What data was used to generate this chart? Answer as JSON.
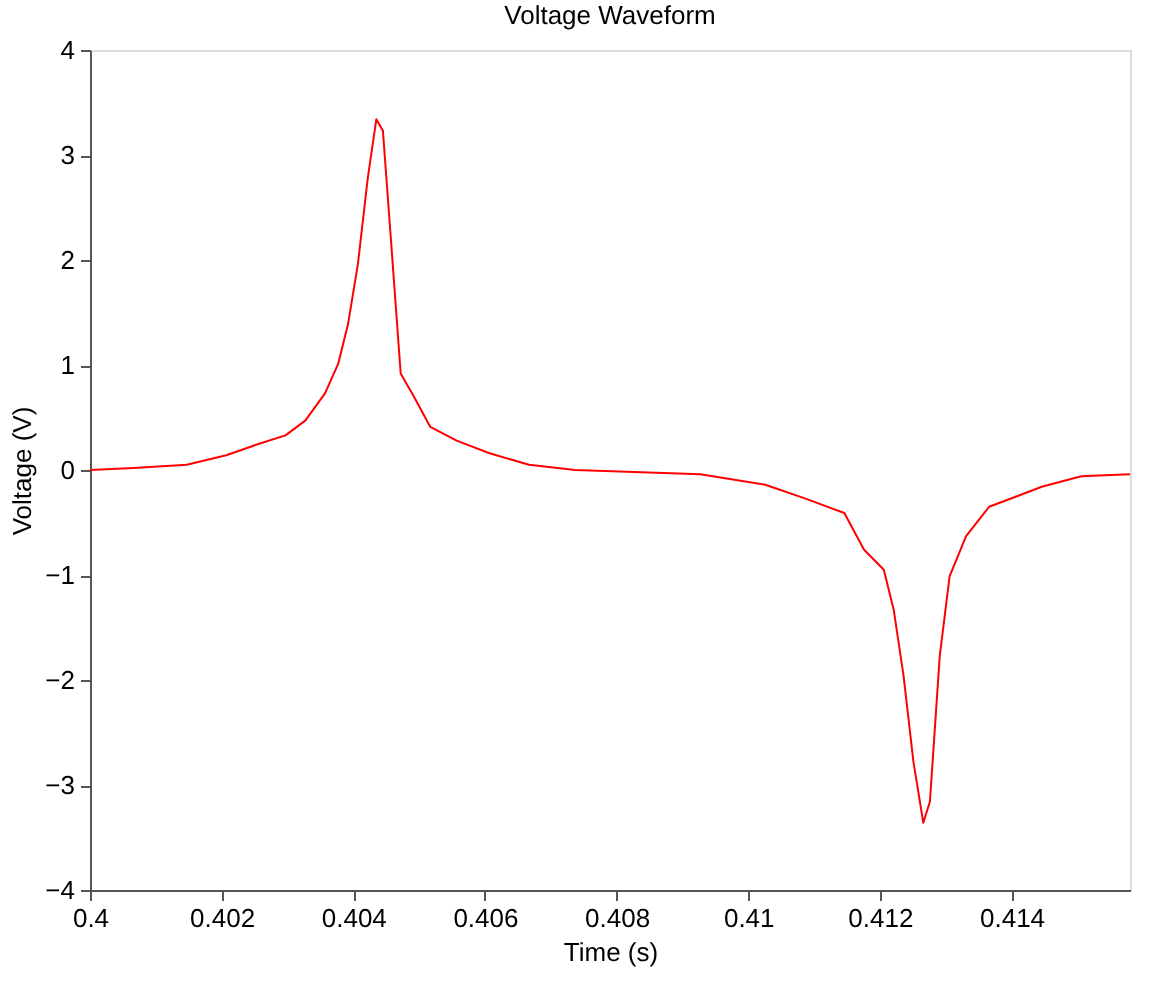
{
  "chart_data": {
    "type": "line",
    "title": "Voltage Waveform",
    "xlabel": "Time (s)",
    "ylabel": "Voltage (V)",
    "xlim": [
      0.4,
      0.4158
    ],
    "xticks": [
      0.4,
      0.402,
      0.404,
      0.406,
      0.408,
      0.41,
      0.412,
      0.414
    ],
    "ylim": [
      -4,
      4
    ],
    "yticks": [
      -4,
      -3,
      -2,
      -1,
      0,
      1,
      2,
      3,
      4
    ],
    "grid": false,
    "marker": "none",
    "line_style": "solid",
    "series": [
      {
        "color": "#ff0000",
        "x": [
          0.4,
          0.40066,
          0.40147,
          0.40207,
          0.40257,
          0.40297,
          0.40327,
          0.40357,
          0.40377,
          0.40392,
          0.40407,
          0.40422,
          0.40435,
          0.40445,
          0.40457,
          0.40472,
          0.40492,
          0.40517,
          0.40557,
          0.40607,
          0.40667,
          0.40737,
          0.40927,
          0.41026,
          0.41086,
          0.41146,
          0.41176,
          0.41206,
          0.41221,
          0.41236,
          0.41251,
          0.41266,
          0.41276,
          0.41291,
          0.41306,
          0.41331,
          0.41366,
          0.41446,
          0.41506,
          0.4158
        ],
        "values": [
          0,
          0.02,
          0.05,
          0.14,
          0.25,
          0.33,
          0.47,
          0.73,
          1.01,
          1.39,
          1.96,
          2.78,
          3.34,
          3.23,
          2.21,
          0.92,
          0.7,
          0.41,
          0.28,
          0.16,
          0.05,
          0,
          -0.04,
          -0.14,
          -0.27,
          -0.41,
          -0.76,
          -0.95,
          -1.33,
          -1.96,
          -2.78,
          -3.36,
          -3.16,
          -1.77,
          -1.01,
          -0.63,
          -0.35,
          -0.16,
          -0.06,
          -0.04
        ]
      }
    ]
  }
}
